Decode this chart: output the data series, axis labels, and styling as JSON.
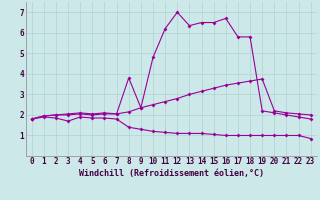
{
  "background_color": "#cce8e8",
  "grid_color": "#aacccc",
  "line_color": "#990099",
  "marker": "D",
  "markersize": 2,
  "linewidth": 0.8,
  "xlabel": "Windchill (Refroidissement éolien,°C)",
  "xlabel_fontsize": 6,
  "tick_fontsize": 5.5,
  "xlim": [
    -0.5,
    23.5
  ],
  "ylim": [
    0,
    7.5
  ],
  "xticks": [
    0,
    1,
    2,
    3,
    4,
    5,
    6,
    7,
    8,
    9,
    10,
    11,
    12,
    13,
    14,
    15,
    16,
    17,
    18,
    19,
    20,
    21,
    22,
    23
  ],
  "yticks": [
    1,
    2,
    3,
    4,
    5,
    6,
    7
  ],
  "line1_x": [
    0,
    1,
    2,
    3,
    4,
    5,
    6,
    7,
    8,
    9,
    10,
    11,
    12,
    13,
    14,
    15,
    16,
    17,
    18,
    19,
    20,
    21,
    22,
    23
  ],
  "line1_y": [
    1.8,
    1.9,
    1.85,
    1.7,
    1.9,
    1.85,
    1.85,
    1.8,
    1.4,
    1.3,
    1.2,
    1.15,
    1.1,
    1.1,
    1.1,
    1.05,
    1.0,
    1.0,
    1.0,
    1.0,
    1.0,
    1.0,
    1.0,
    0.85
  ],
  "line2_x": [
    0,
    1,
    2,
    3,
    4,
    5,
    6,
    7,
    8,
    9,
    10,
    11,
    12,
    13,
    14,
    15,
    16,
    17,
    18,
    19,
    20,
    21,
    22,
    23
  ],
  "line2_y": [
    1.8,
    1.95,
    2.0,
    2.0,
    2.05,
    2.0,
    2.05,
    2.05,
    2.15,
    2.35,
    2.5,
    2.65,
    2.8,
    3.0,
    3.15,
    3.3,
    3.45,
    3.55,
    3.65,
    3.75,
    2.2,
    2.1,
    2.05,
    2.0
  ],
  "line3_x": [
    0,
    1,
    2,
    3,
    4,
    5,
    6,
    7,
    8,
    9,
    10,
    11,
    12,
    13,
    14,
    15,
    16,
    17,
    18,
    19,
    20,
    21,
    22,
    23
  ],
  "line3_y": [
    1.8,
    1.95,
    2.0,
    2.05,
    2.1,
    2.05,
    2.1,
    2.05,
    3.8,
    2.35,
    4.8,
    6.2,
    7.0,
    6.35,
    6.5,
    6.5,
    6.7,
    5.8,
    5.8,
    2.2,
    2.1,
    2.0,
    1.9,
    1.8
  ]
}
